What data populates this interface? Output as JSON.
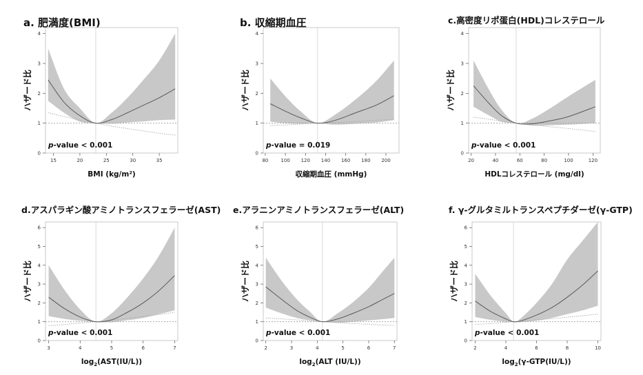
{
  "charts": [
    {
      "title": "a. 肥満度(BMI)",
      "xlabel": "BMI (kg/m²)",
      "ylabel": "ハザード比",
      "pvalue": "p-value < 0.001",
      "colors": {
        "band": "#c8c8c8",
        "line": "#595959",
        "ref": "#aaaaaa"
      },
      "chart_data": {
        "type": "line",
        "xlim": [
          13.5,
          38.5
        ],
        "ylim": [
          0,
          4.2
        ],
        "xticks": [
          15,
          20,
          25,
          30,
          35
        ],
        "yticks": [
          0,
          1,
          2,
          3,
          4
        ],
        "ref_x": 23,
        "ref_y": 1,
        "x": [
          14,
          17,
          20,
          23,
          26,
          29,
          32,
          35,
          38
        ],
        "series": [
          {
            "role": "estimate",
            "values": [
              2.45,
              1.7,
              1.25,
              1.0,
              1.12,
              1.35,
              1.6,
              1.85,
              2.15
            ]
          },
          {
            "role": "ci_upper",
            "values": [
              3.5,
              2.15,
              1.5,
              1.0,
              1.35,
              1.85,
              2.45,
              3.1,
              4.0
            ]
          },
          {
            "role": "ci_lower",
            "values": [
              1.75,
              1.35,
              1.05,
              1.0,
              0.98,
              1.02,
              1.06,
              1.1,
              1.12
            ]
          },
          {
            "role": "linear",
            "values": [
              1.35,
              1.22,
              1.1,
              1.0,
              0.9,
              0.82,
              0.74,
              0.66,
              0.6
            ]
          }
        ]
      }
    },
    {
      "title": "b. 収縮期血圧",
      "xlabel": "収縮期血圧 (mmHg)",
      "ylabel": "ハザード比",
      "pvalue": "p-value = 0.019",
      "colors": {
        "band": "#c8c8c8",
        "line": "#595959",
        "ref": "#aaaaaa"
      },
      "chart_data": {
        "type": "line",
        "xlim": [
          78,
          213
        ],
        "ylim": [
          0,
          4.2
        ],
        "xticks": [
          80,
          100,
          120,
          140,
          160,
          180,
          200
        ],
        "yticks": [
          0,
          1,
          2,
          3,
          4
        ],
        "ref_x": 132,
        "ref_y": 1,
        "x": [
          85,
          100,
          115,
          132,
          150,
          170,
          190,
          208
        ],
        "series": [
          {
            "role": "estimate",
            "values": [
              1.65,
              1.4,
              1.18,
              1.0,
              1.1,
              1.35,
              1.6,
              1.92
            ]
          },
          {
            "role": "ci_upper",
            "values": [
              2.5,
              1.9,
              1.4,
              1.0,
              1.3,
              1.8,
              2.4,
              3.1
            ]
          },
          {
            "role": "ci_lower",
            "values": [
              1.05,
              1.0,
              0.98,
              1.0,
              0.95,
              0.98,
              1.02,
              1.1
            ]
          },
          {
            "role": "linear",
            "values": [
              0.92,
              0.94,
              0.97,
              1.0,
              1.03,
              1.06,
              1.1,
              1.13
            ]
          }
        ]
      }
    },
    {
      "title": "c.高密度リポ蛋白(HDL)コレステロール",
      "xlabel": "HDLコレステロール (mg/dl)",
      "ylabel": "ハザード比",
      "pvalue": "p-value < 0.001",
      "colors": {
        "band": "#c8c8c8",
        "line": "#595959",
        "ref": "#aaaaaa"
      },
      "chart_data": {
        "type": "line",
        "xlim": [
          18,
          126
        ],
        "ylim": [
          0,
          4.2
        ],
        "xticks": [
          20,
          40,
          60,
          80,
          100,
          120
        ],
        "yticks": [
          0,
          1,
          2,
          3,
          4
        ],
        "ref_x": 57,
        "ref_y": 1,
        "x": [
          22,
          35,
          45,
          57,
          70,
          85,
          100,
          122
        ],
        "series": [
          {
            "role": "estimate",
            "values": [
              2.25,
              1.65,
              1.25,
              1.0,
              0.98,
              1.08,
              1.22,
              1.55
            ]
          },
          {
            "role": "ci_upper",
            "values": [
              3.1,
              2.1,
              1.45,
              1.0,
              1.15,
              1.5,
              1.9,
              2.45
            ]
          },
          {
            "role": "ci_lower",
            "values": [
              1.55,
              1.25,
              1.05,
              1.0,
              0.92,
              0.93,
              0.95,
              1.0
            ]
          },
          {
            "role": "linear",
            "values": [
              1.2,
              1.13,
              1.06,
              1.0,
              0.95,
              0.88,
              0.82,
              0.72
            ]
          }
        ]
      }
    },
    {
      "title": "d.アスパラギン酸アミノトランスフェラーゼ(AST)",
      "xlabel": "log2(AST(IU/L))",
      "xlabel_parts": [
        "log",
        "2",
        "(AST(IU/L))"
      ],
      "ylabel": "ハザード比",
      "pvalue": "p-value < 0.001",
      "colors": {
        "band": "#c8c8c8",
        "line": "#595959",
        "ref": "#aaaaaa"
      },
      "chart_data": {
        "type": "line",
        "xlim": [
          2.9,
          7.1
        ],
        "ylim": [
          0,
          6.3
        ],
        "xticks": [
          3,
          4,
          5,
          6,
          7
        ],
        "yticks": [
          0,
          1,
          2,
          3,
          4,
          5,
          6
        ],
        "ref_x": 4.5,
        "ref_y": 1,
        "x": [
          3.0,
          3.5,
          4.0,
          4.5,
          5.0,
          5.5,
          6.0,
          6.5,
          7.0
        ],
        "series": [
          {
            "role": "estimate",
            "values": [
              2.3,
              1.7,
              1.25,
              1.0,
              1.1,
              1.5,
              2.0,
              2.65,
              3.45
            ]
          },
          {
            "role": "ci_upper",
            "values": [
              4.0,
              2.7,
              1.65,
              1.0,
              1.45,
              2.3,
              3.3,
              4.5,
              6.0
            ]
          },
          {
            "role": "ci_lower",
            "values": [
              1.3,
              1.15,
              1.05,
              1.0,
              0.97,
              1.08,
              1.2,
              1.4,
              1.6
            ]
          },
          {
            "role": "linear",
            "values": [
              0.78,
              0.85,
              0.93,
              1.0,
              1.08,
              1.18,
              1.28,
              1.38,
              1.5
            ]
          }
        ]
      }
    },
    {
      "title": "e.アラニンアミノトランスフェラーゼ(ALT)",
      "xlabel": "log2(ALT (IU/L))",
      "xlabel_parts": [
        "log",
        "2",
        "(ALT (IU/L))"
      ],
      "ylabel": "ハザード比",
      "pvalue": "p-value < 0.001",
      "colors": {
        "band": "#c8c8c8",
        "line": "#595959",
        "ref": "#aaaaaa"
      },
      "chart_data": {
        "type": "line",
        "xlim": [
          1.9,
          7.1
        ],
        "ylim": [
          0,
          6.3
        ],
        "xticks": [
          2,
          3,
          4,
          5,
          6,
          7
        ],
        "yticks": [
          0,
          1,
          2,
          3,
          4,
          5,
          6
        ],
        "ref_x": 4.2,
        "ref_y": 1,
        "x": [
          2.0,
          2.6,
          3.2,
          3.7,
          4.2,
          4.8,
          5.4,
          6.0,
          6.5,
          7.0
        ],
        "series": [
          {
            "role": "estimate",
            "values": [
              2.85,
              2.2,
              1.6,
              1.25,
              1.0,
              1.15,
              1.45,
              1.8,
              2.15,
              2.5
            ]
          },
          {
            "role": "ci_upper",
            "values": [
              4.4,
              3.2,
              2.2,
              1.55,
              1.0,
              1.45,
              2.05,
              2.8,
              3.6,
              4.4
            ]
          },
          {
            "role": "ci_lower",
            "values": [
              1.75,
              1.45,
              1.2,
              1.08,
              1.0,
              0.95,
              1.0,
              1.07,
              1.13,
              1.2
            ]
          },
          {
            "role": "linear",
            "values": [
              1.2,
              1.15,
              1.1,
              1.05,
              1.0,
              0.95,
              0.9,
              0.86,
              0.83,
              0.8
            ]
          }
        ]
      }
    },
    {
      "title": "f. γ-グルタミルトランスペプチダーゼ(γ-GTP)",
      "xlabel": "log2(γ-GTP(IU/L))",
      "xlabel_parts": [
        "log",
        "2",
        "(γ-GTP(IU/L))"
      ],
      "ylabel": "ハザード比",
      "pvalue": "p-value < 0.001",
      "colors": {
        "band": "#c8c8c8",
        "line": "#595959",
        "ref": "#aaaaaa"
      },
      "chart_data": {
        "type": "line",
        "xlim": [
          1.8,
          10.2
        ],
        "ylim": [
          0,
          6.3
        ],
        "xticks": [
          2,
          4,
          6,
          8,
          10
        ],
        "yticks": [
          0,
          1,
          2,
          3,
          4,
          5,
          6
        ],
        "ref_x": 4.5,
        "ref_y": 1,
        "x": [
          2,
          3,
          4,
          4.5,
          5,
          6,
          7,
          8,
          9,
          10
        ],
        "series": [
          {
            "role": "estimate",
            "values": [
              2.1,
              1.55,
              1.15,
              1.0,
              1.05,
              1.35,
              1.75,
              2.3,
              2.95,
              3.7
            ]
          },
          {
            "role": "ci_upper",
            "values": [
              3.55,
              2.4,
              1.45,
              1.0,
              1.2,
              2.0,
              3.0,
              4.3,
              5.3,
              6.3
            ]
          },
          {
            "role": "ci_lower",
            "values": [
              1.25,
              1.1,
              1.0,
              1.0,
              0.98,
              1.05,
              1.2,
              1.4,
              1.6,
              1.85
            ]
          },
          {
            "role": "linear",
            "values": [
              0.85,
              0.9,
              0.97,
              1.0,
              1.03,
              1.1,
              1.16,
              1.24,
              1.32,
              1.4
            ]
          }
        ]
      }
    }
  ]
}
